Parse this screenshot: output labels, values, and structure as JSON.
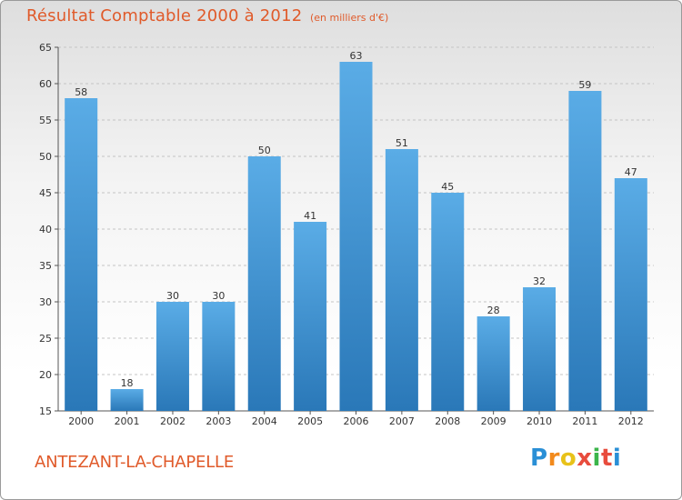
{
  "header": {
    "title": "Résultat Comptable 2000 à 2012",
    "subtitle": "(en milliers d'€)"
  },
  "footer": {
    "place": "ANTEZANT-LA-CHAPELLE",
    "brand_letters": [
      "P",
      "r",
      "o",
      "x",
      "i",
      "t",
      "i"
    ]
  },
  "colors": {
    "bar_light": "#5aace6",
    "bar_dark": "#2a78b8",
    "title": "#e05a2a",
    "grid": "#c4c4c4"
  },
  "chart_data": {
    "type": "bar",
    "title": "Résultat Comptable 2000 à 2012",
    "subtitle": "(en milliers d'€)",
    "categories": [
      "2000",
      "2001",
      "2002",
      "2003",
      "2004",
      "2005",
      "2006",
      "2007",
      "2008",
      "2009",
      "2010",
      "2011",
      "2012"
    ],
    "values": [
      58,
      18,
      30,
      30,
      50,
      41,
      63,
      51,
      45,
      28,
      32,
      59,
      47
    ],
    "ylim": [
      15,
      65
    ],
    "yticks": [
      15,
      20,
      25,
      30,
      35,
      40,
      45,
      50,
      55,
      60,
      65
    ],
    "grid": true,
    "xlabel": "",
    "ylabel": ""
  }
}
